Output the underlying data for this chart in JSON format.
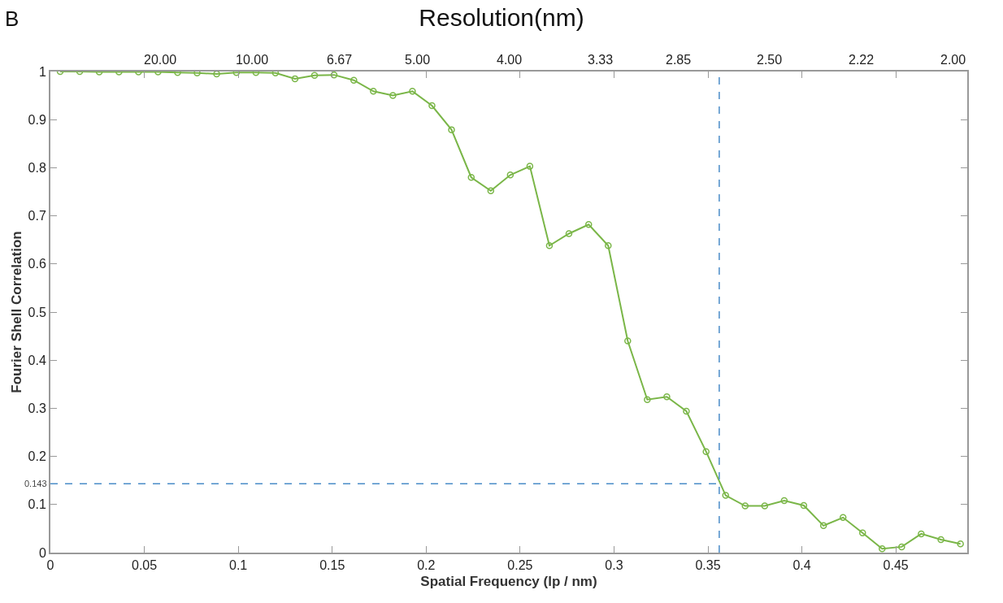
{
  "chart_data": {
    "type": "line",
    "title": "Resolution(nm)",
    "xlabel": "Spatial Frequency (lp / nm)",
    "ylabel": "Fourier Shell Correlation",
    "annotations": [
      "B",
      "20.00",
      "10.00",
      "6.67",
      "5.00",
      "4.00",
      "3.33",
      "2.85",
      "2.50",
      "2.22",
      "2.00"
    ],
    "x": [
      0.0052,
      0.0156,
      0.026,
      0.0365,
      0.0469,
      0.0573,
      0.0677,
      0.0781,
      0.0885,
      0.099,
      0.1094,
      0.1198,
      0.1302,
      0.1406,
      0.151,
      0.1615,
      0.1719,
      0.1823,
      0.1927,
      0.2031,
      0.2135,
      0.224,
      0.2344,
      0.2448,
      0.2552,
      0.2656,
      0.276,
      0.2865,
      0.2969,
      0.3073,
      0.3177,
      0.3281,
      0.3385,
      0.349,
      0.3594,
      0.3698,
      0.3802,
      0.3906,
      0.401,
      0.4115,
      0.4219,
      0.4323,
      0.4427,
      0.4531,
      0.4635,
      0.474,
      0.4844
    ],
    "series": [
      {
        "color": "#7ab648",
        "values": [
          1.0,
          1.0,
          0.999,
          0.999,
          0.999,
          0.999,
          0.998,
          0.997,
          0.995,
          0.998,
          0.998,
          0.997,
          0.985,
          0.992,
          0.993,
          0.982,
          0.959,
          0.95,
          0.959,
          0.929,
          0.879,
          0.78,
          0.752,
          0.785,
          0.803,
          0.638,
          0.663,
          0.682,
          0.638,
          0.44,
          0.318,
          0.324,
          0.294,
          0.21,
          0.119,
          0.097,
          0.097,
          0.108,
          0.098,
          0.056,
          0.073,
          0.041,
          0.008,
          0.012,
          0.039,
          0.027,
          0.018
        ]
      }
    ],
    "marker": "circle",
    "line_style": "solid",
    "xlim": [
      0,
      0.488
    ],
    "xticks": [
      0,
      0.05,
      0.1,
      0.15,
      0.2,
      0.25,
      0.3,
      0.35,
      0.4,
      0.45
    ],
    "ylim": [
      0,
      1
    ],
    "yticks": [
      0,
      0.1,
      0.2,
      0.3,
      0.4,
      0.5,
      0.6,
      0.7,
      0.8,
      0.9,
      1
    ],
    "ref_lines": [
      {
        "axis": "y",
        "value": 0.143,
        "label": "0.143",
        "color": "#4a8cc8",
        "line_style": "dashed"
      },
      {
        "axis": "x",
        "value": 0.356,
        "color": "#4a8cc8",
        "line_style": "dashed"
      }
    ],
    "legend": false
  }
}
